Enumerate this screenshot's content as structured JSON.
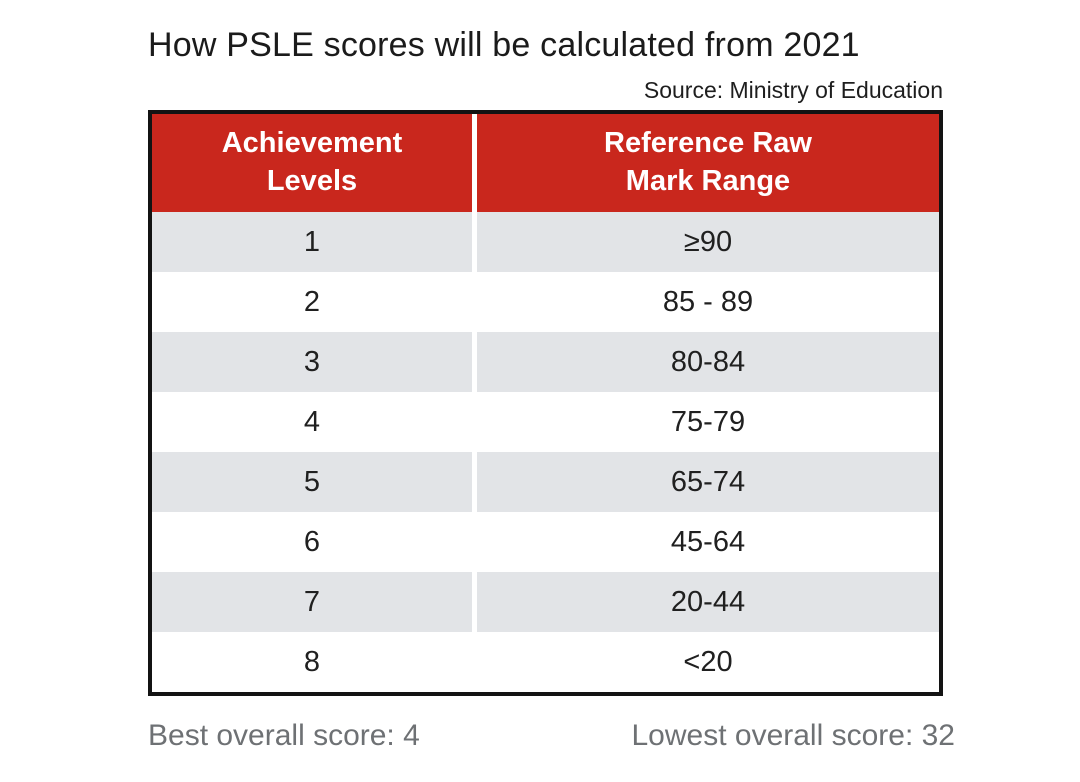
{
  "title": "How PSLE scores will be calculated from 2021",
  "source": "Source: Ministry of Education",
  "table": {
    "header": {
      "col1_line1": "Achievement",
      "col1_line2": "Levels",
      "col2_line1": "Reference Raw",
      "col2_line2": "Mark Range"
    },
    "rows": [
      {
        "level": "1",
        "range": "≥90"
      },
      {
        "level": "2",
        "range": "85 - 89"
      },
      {
        "level": "3",
        "range": "80-84"
      },
      {
        "level": "4",
        "range": "75-79"
      },
      {
        "level": "5",
        "range": "65-74"
      },
      {
        "level": "6",
        "range": "45-64"
      },
      {
        "level": "7",
        "range": "20-44"
      },
      {
        "level": "8",
        "range": "<20"
      }
    ]
  },
  "footer": {
    "best": "Best overall score: 4",
    "lowest": "Lowest overall score: 32"
  },
  "colors": {
    "header_red": "#c9271d",
    "row_gray": "#e2e4e7",
    "table_border": "#131313",
    "footer_text_gray": "#6e7174"
  },
  "chart_data": {
    "type": "table",
    "title": "How PSLE scores will be calculated from 2021",
    "source": "Source: Ministry of Education",
    "columns": [
      "Achievement Levels",
      "Reference Raw Mark Range"
    ],
    "rows": [
      [
        "1",
        "≥90"
      ],
      [
        "2",
        "85 - 89"
      ],
      [
        "3",
        "80-84"
      ],
      [
        "4",
        "75-79"
      ],
      [
        "5",
        "65-74"
      ],
      [
        "6",
        "45-64"
      ],
      [
        "7",
        "20-44"
      ],
      [
        "8",
        "<20"
      ]
    ],
    "annotations": [
      "Best overall score: 4",
      "Lowest overall score: 32"
    ],
    "layout_hints": {
      "header_background": "#c9271d",
      "alternating_row_background": [
        "#ffffff",
        "#e2e4e7"
      ],
      "rows_striped": true
    }
  }
}
